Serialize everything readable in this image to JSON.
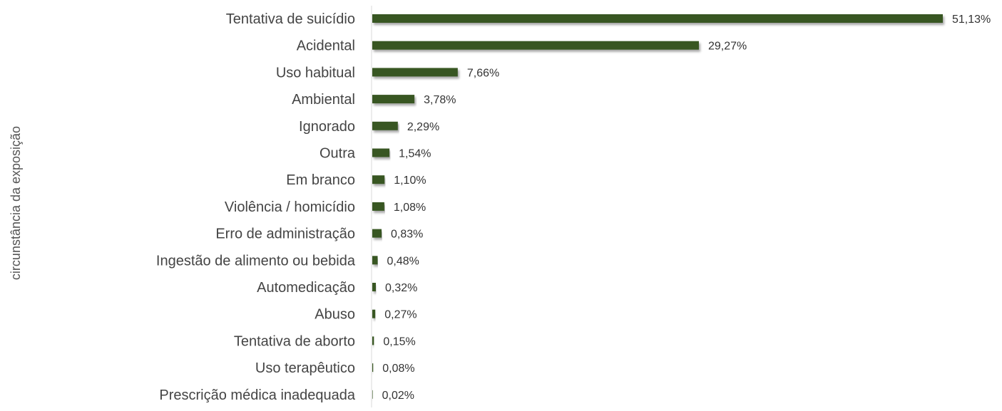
{
  "chart_data": {
    "type": "bar",
    "orientation": "horizontal",
    "ylabel": "circunstância da exposição",
    "xlabel": "",
    "xlim": [
      0,
      51.13
    ],
    "value_suffix": "%",
    "grid": false,
    "legend": "none",
    "bar_color": "#375623",
    "categories": [
      "Tentativa de suicídio",
      "Acidental",
      "Uso habitual",
      "Ambiental",
      "Ignorado",
      "Outra",
      "Em branco",
      "Violência / homicídio",
      "Erro de administração",
      "Ingestão de alimento ou bebida",
      "Automedicação ",
      "Abuso",
      "Tentativa de aborto",
      "Uso terapêutico",
      "Prescrição médica inadequada"
    ],
    "values": [
      51.13,
      29.27,
      7.66,
      3.78,
      2.29,
      1.54,
      1.1,
      1.08,
      0.83,
      0.48,
      0.32,
      0.27,
      0.15,
      0.08,
      0.02
    ],
    "value_labels": [
      "51,13%",
      "29,27%",
      "7,66%",
      "3,78%",
      "2,29%",
      "1,54%",
      "1,10%",
      "1,08%",
      "0,83%",
      "0,48%",
      "0,32%",
      "0,27%",
      "0,15%",
      "0,08%",
      "0,02%"
    ]
  }
}
